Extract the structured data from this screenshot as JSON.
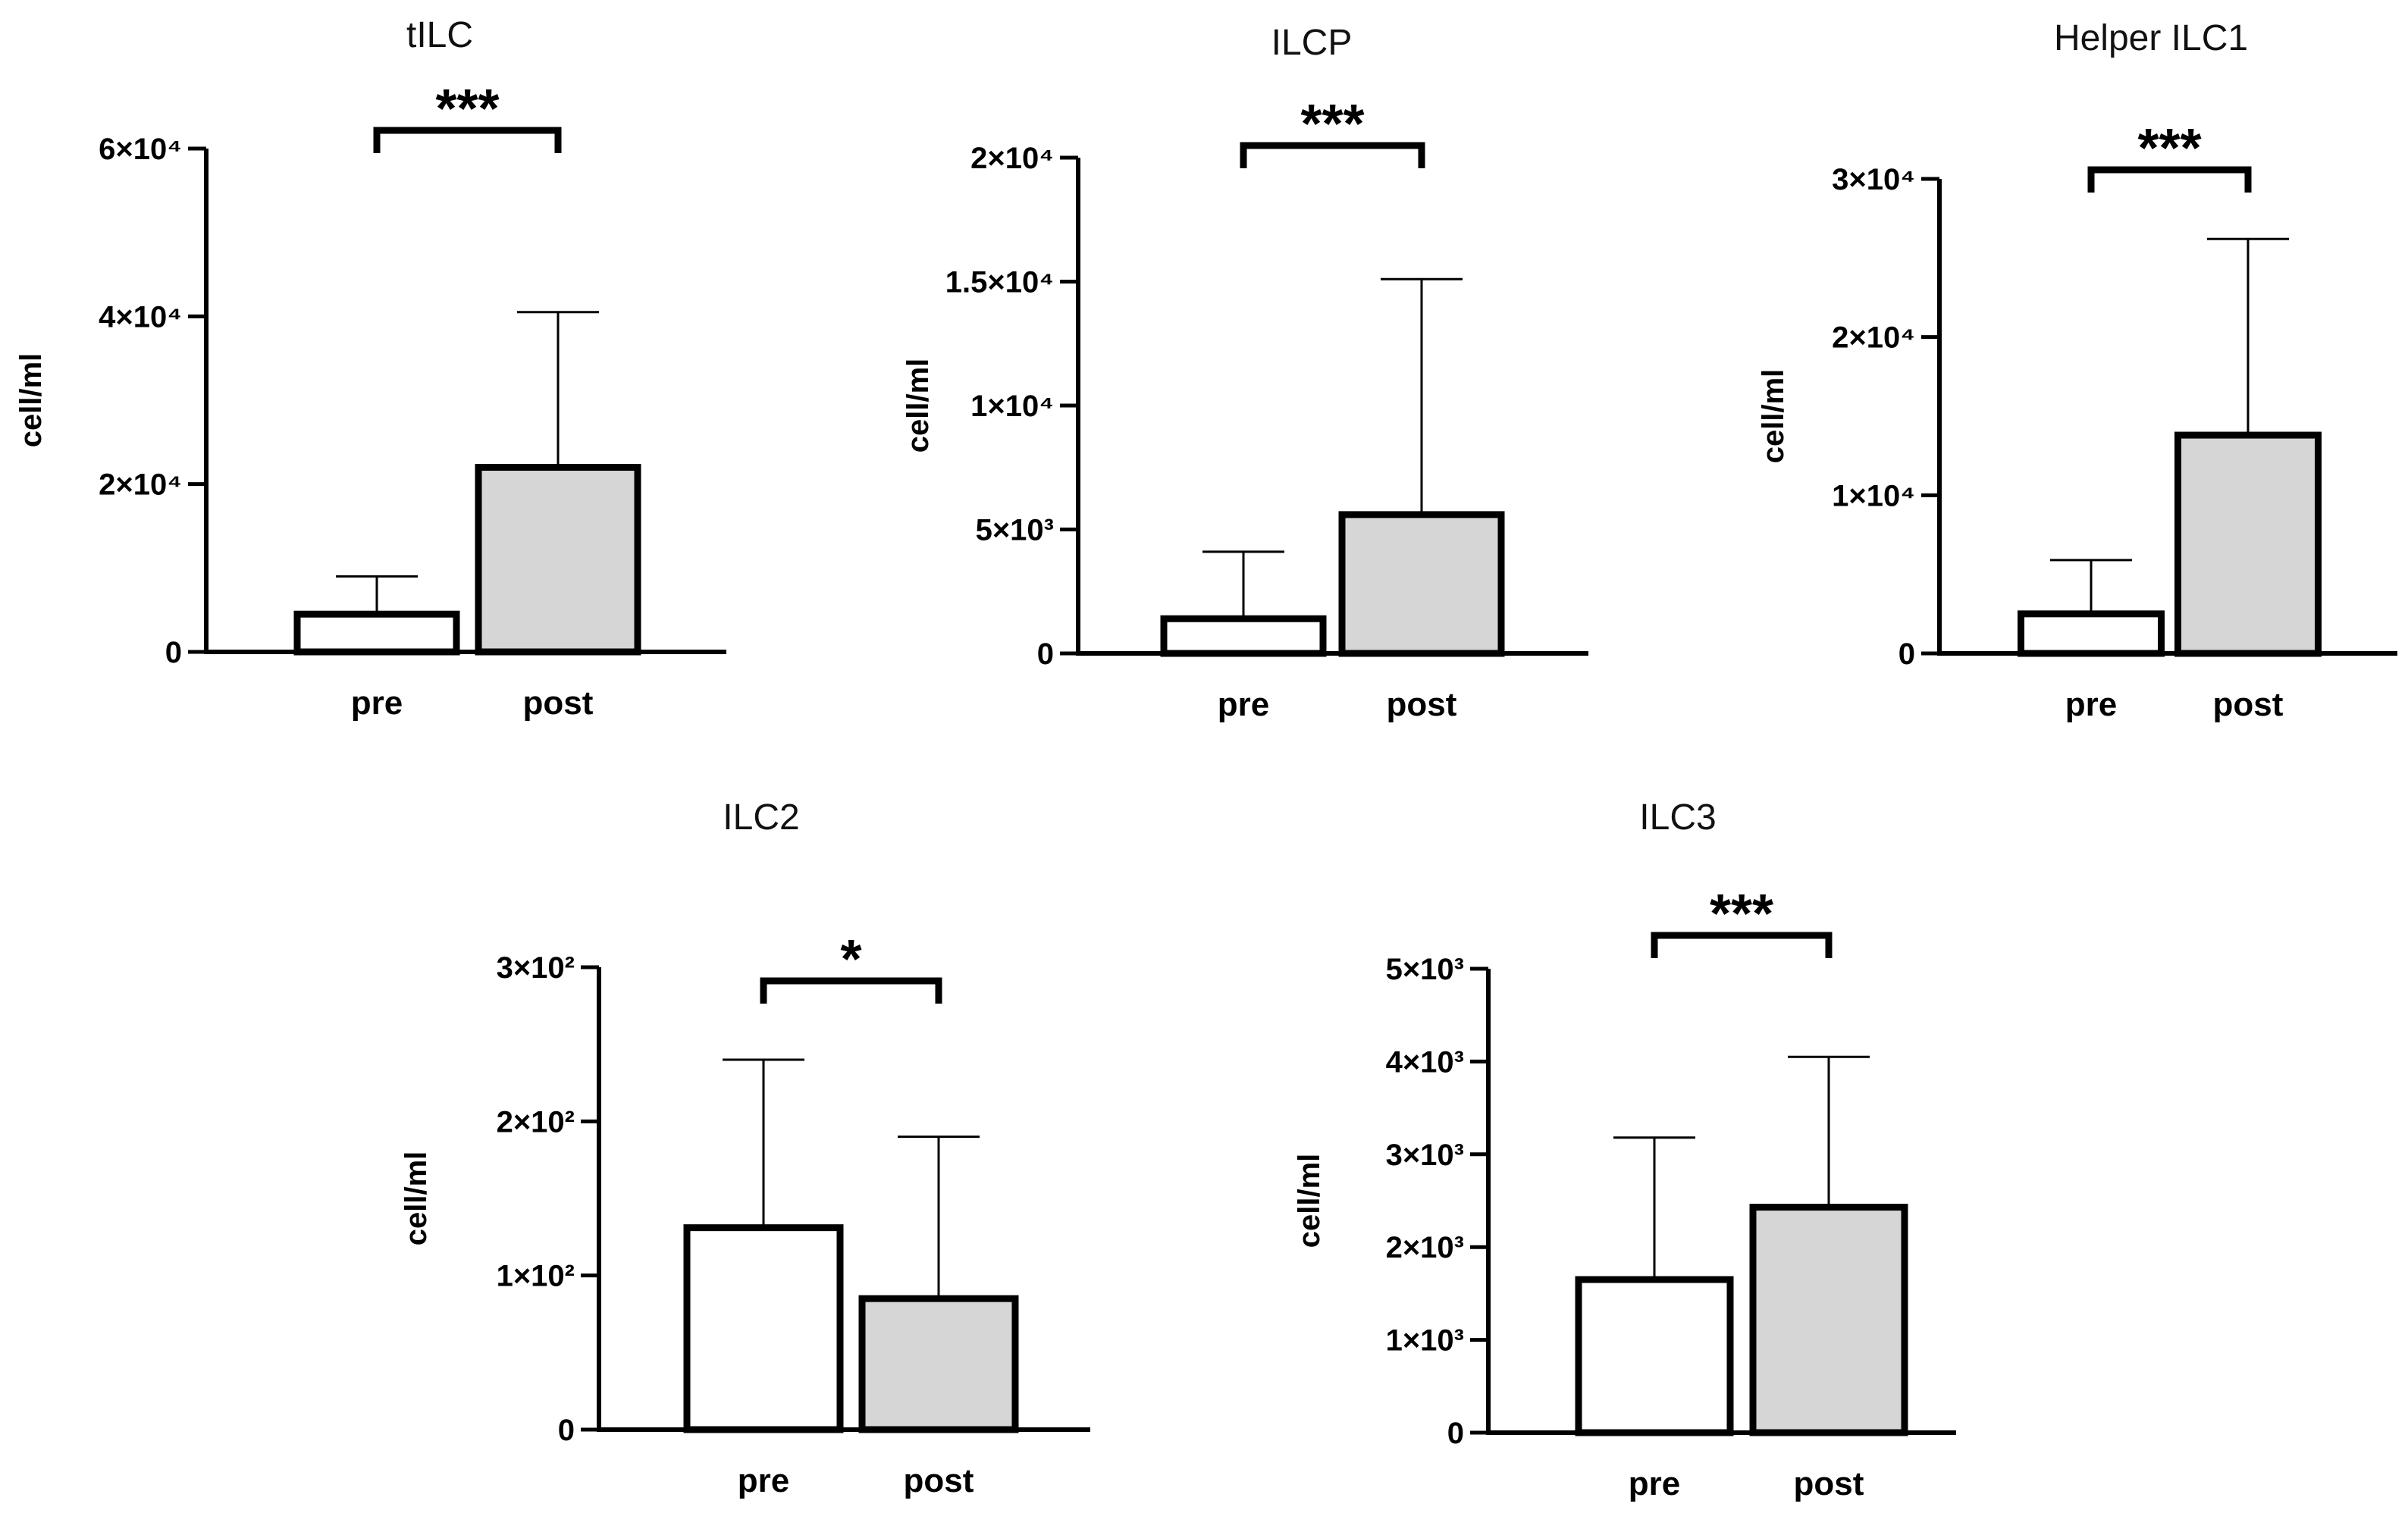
{
  "figure": {
    "bar_colors": {
      "pre": "#ffffff",
      "post": "#d6d6d6"
    }
  },
  "chart_data": [
    {
      "type": "bar",
      "title": "tILC",
      "ylabel": "cell/ml",
      "xlabel": "",
      "categories": [
        "pre",
        "post"
      ],
      "values": [
        4500,
        22000
      ],
      "error_upper": [
        9000,
        40500
      ],
      "ylim": [
        0,
        60000
      ],
      "yticks": [
        0,
        20000,
        40000,
        60000
      ],
      "ytick_labels": [
        "0",
        "2×10⁴",
        "4×10⁴",
        "6×10⁴"
      ],
      "significance": "***"
    },
    {
      "type": "bar",
      "title": "ILCP",
      "ylabel": "cell/ml",
      "xlabel": "",
      "categories": [
        "pre",
        "post"
      ],
      "values": [
        1400,
        5600
      ],
      "error_upper": [
        4100,
        15100
      ],
      "ylim": [
        0,
        20000
      ],
      "yticks": [
        0,
        5000,
        10000,
        15000,
        20000
      ],
      "ytick_labels": [
        "0",
        "5×10³",
        "1×10⁴",
        "1.5×10⁴",
        "2×10⁴"
      ],
      "significance": "***"
    },
    {
      "type": "bar",
      "title": "Helper ILC1",
      "ylabel": "cell/ml",
      "xlabel": "",
      "categories": [
        "pre",
        "post"
      ],
      "values": [
        2500,
        13800
      ],
      "error_upper": [
        5900,
        26200
      ],
      "ylim": [
        0,
        30000
      ],
      "yticks": [
        0,
        10000,
        20000,
        30000
      ],
      "ytick_labels": [
        "0",
        "1×10⁴",
        "2×10⁴",
        "3×10⁴"
      ],
      "significance": "***"
    },
    {
      "type": "bar",
      "title": "ILC2",
      "ylabel": "cell/ml",
      "xlabel": "",
      "categories": [
        "pre",
        "post"
      ],
      "values": [
        131,
        85
      ],
      "error_upper": [
        240,
        190
      ],
      "ylim": [
        0,
        300
      ],
      "yticks": [
        0,
        100,
        200,
        300
      ],
      "ytick_labels": [
        "0",
        "1×10²",
        "2×10²",
        "3×10²"
      ],
      "significance": "*"
    },
    {
      "type": "bar",
      "title": "ILC3",
      "ylabel": "cell/ml",
      "xlabel": "",
      "categories": [
        "pre",
        "post"
      ],
      "values": [
        1650,
        2430
      ],
      "error_upper": [
        3180,
        4050
      ],
      "ylim": [
        0,
        5000
      ],
      "yticks": [
        0,
        1000,
        2000,
        3000,
        4000,
        5000
      ],
      "ytick_labels": [
        "0",
        "1×10³",
        "2×10³",
        "3×10³",
        "4×10³",
        "5×10³"
      ],
      "significance": "***"
    }
  ]
}
